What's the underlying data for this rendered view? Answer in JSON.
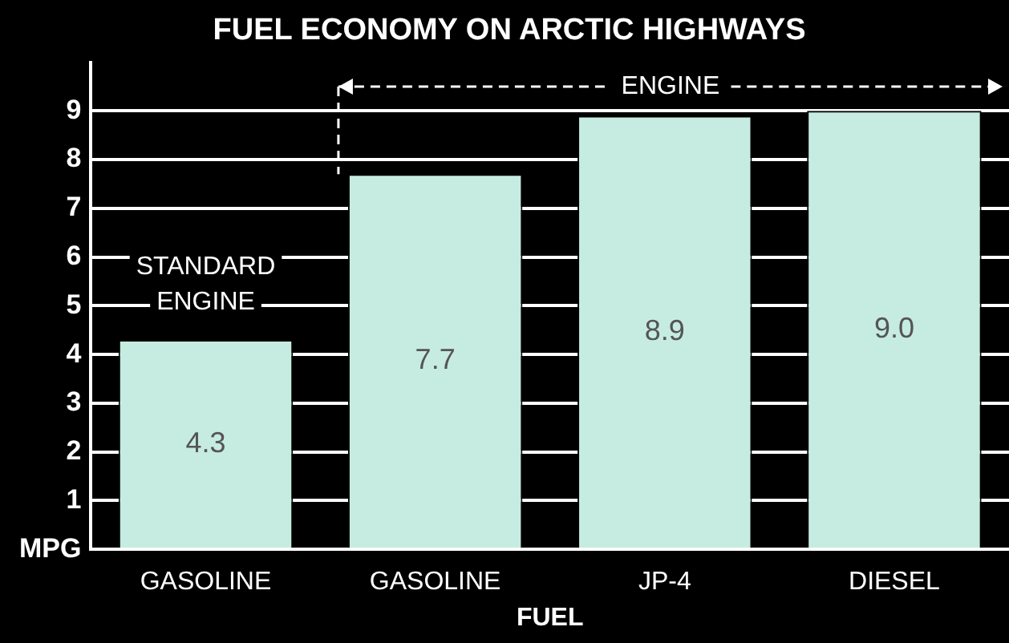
{
  "chart_data": {
    "type": "bar",
    "title": "FUEL ECONOMY ON ARCTIC HIGHWAYS",
    "xlabel": "FUEL",
    "categories": [
      "GASOLINE",
      "GASOLINE",
      "JP-4",
      "DIESEL"
    ],
    "values": [
      4.3,
      7.7,
      8.9,
      9.0
    ],
    "value_labels": [
      "4.3",
      "7.7",
      "8.9",
      "9.0"
    ],
    "color": "#c6ece1",
    "ylim": [
      0,
      10
    ],
    "yticks": [
      {
        "value": 0,
        "label": "MPG"
      },
      1,
      2,
      3,
      4,
      5,
      6,
      7,
      8,
      9
    ],
    "grid": "y",
    "annotations": [
      "STANDARD ENGINE",
      "ENGINE"
    ]
  }
}
